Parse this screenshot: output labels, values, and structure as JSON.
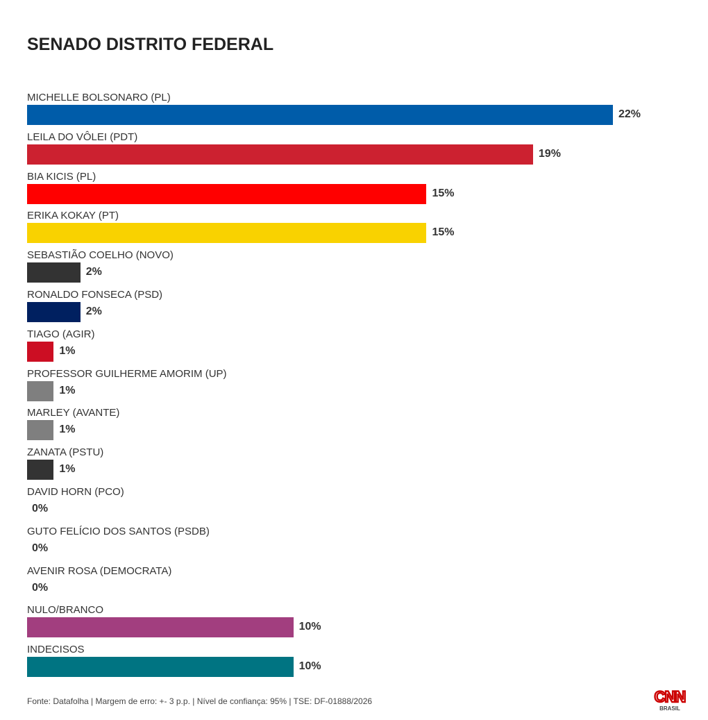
{
  "title": "SENADO DISTRITO FEDERAL",
  "footer": "Fonte: Datafolha | Margem de erro: +- 3 p.p. | Nível de confiança: 95% | TSE: DF-01888/2026",
  "logo": {
    "text": "CNN",
    "sub": "BRASIL",
    "color": "#cc0000"
  },
  "chart_data": {
    "type": "bar",
    "orientation": "horizontal",
    "title": "SENADO DISTRITO FEDERAL",
    "value_suffix": "%",
    "categories": [
      "MICHELLE BOLSONARO (PL)",
      "LEILA DO VÔLEI (PDT)",
      "BIA KICIS (PL)",
      "ERIKA KOKAY (PT)",
      "SEBASTIÃO COELHO (NOVO)",
      "RONALDO FONSECA (PSD)",
      "TIAGO (AGIR)",
      "PROFESSOR GUILHERME AMORIM (UP)",
      "MARLEY (AVANTE)",
      "ZANATA (PSTU)",
      "DAVID HORN (PCO)",
      "GUTO FELÍCIO DOS SANTOS (PSDB)",
      "AVENIR ROSA (DEMOCRATA)",
      "NULO/BRANCO",
      "INDECISOS"
    ],
    "values": [
      22,
      19,
      15,
      15,
      2,
      2,
      1,
      1,
      1,
      1,
      0,
      0,
      0,
      10,
      10
    ],
    "labels": [
      "22%",
      "19%",
      "15%",
      "15%",
      "2%",
      "2%",
      "1%",
      "1%",
      "1%",
      "1%",
      "0%",
      "0%",
      "0%",
      "10%",
      "10%"
    ],
    "colors": [
      "#005ca9",
      "#cc2130",
      "#ff0000",
      "#f9d200",
      "#333333",
      "#002060",
      "#cc0e23",
      "#7f7f7f",
      "#7f7f7f",
      "#333333",
      "#cccccc",
      "#cccccc",
      "#cccccc",
      "#a23e7f",
      "#007482"
    ],
    "xlim": [
      0,
      22
    ],
    "grid": false,
    "legend": "none"
  }
}
